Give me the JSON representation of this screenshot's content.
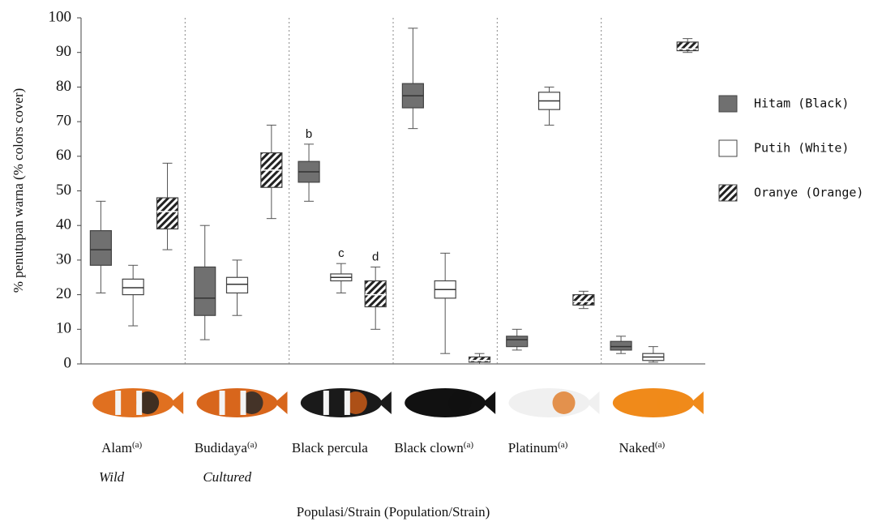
{
  "chart_data": {
    "type": "box",
    "y_label": "% penutupan warna (% colors cover)",
    "x_label": "Populasi/Strain (Population/Strain)",
    "categories": [
      "Alam",
      "Budidaya",
      "Black percula",
      "Black clown",
      "Platinum",
      "Naked"
    ],
    "category_notes": [
      "(a)",
      "(a)",
      null,
      "(a)",
      "(a)",
      "(a)"
    ],
    "category_subtitles": [
      "Wild",
      "Cultured",
      null,
      null,
      null,
      null
    ],
    "ylim": [
      0,
      100
    ],
    "yticks": [
      0,
      10,
      20,
      30,
      40,
      50,
      60,
      70,
      80,
      90,
      100
    ],
    "group_dividers": true,
    "series": [
      {
        "name": "Hitam (Black)",
        "color": "#707070",
        "hatch": false,
        "min": [
          20.5,
          7,
          47,
          68,
          4,
          3
        ],
        "q1": [
          28.5,
          14,
          52.5,
          74,
          5,
          4
        ],
        "median": [
          33,
          19,
          55.5,
          77.5,
          7,
          5
        ],
        "q3": [
          38.5,
          28,
          58.5,
          81,
          8,
          6.5
        ],
        "max": [
          47,
          40,
          63.5,
          97,
          10,
          8
        ],
        "annotations": [
          null,
          null,
          "b",
          null,
          null,
          null
        ]
      },
      {
        "name": "Putih (White)",
        "color": "#ffffff",
        "hatch": false,
        "min": [
          11,
          14,
          20.5,
          3,
          69,
          0.5
        ],
        "q1": [
          20,
          20.5,
          24,
          19,
          73.5,
          1
        ],
        "median": [
          22,
          23,
          25,
          21.5,
          76,
          2
        ],
        "q3": [
          24.5,
          25,
          26,
          24,
          78.5,
          3
        ],
        "max": [
          28.5,
          30,
          29,
          32,
          80,
          5
        ],
        "annotations": [
          null,
          null,
          "c",
          null,
          null,
          null
        ]
      },
      {
        "name": "Oranye (Orange)",
        "color": "#ffffff",
        "hatch": true,
        "min": [
          33,
          42,
          10,
          0,
          16,
          90
        ],
        "q1": [
          39,
          51,
          16.5,
          0.5,
          17,
          90.5
        ],
        "median": [
          44,
          56,
          20,
          1,
          18,
          91
        ],
        "q3": [
          48,
          61,
          24,
          2,
          20,
          93
        ],
        "max": [
          58,
          69,
          28,
          3,
          21,
          94
        ],
        "annotations": [
          null,
          null,
          "d",
          null,
          null,
          null
        ]
      }
    ]
  }
}
